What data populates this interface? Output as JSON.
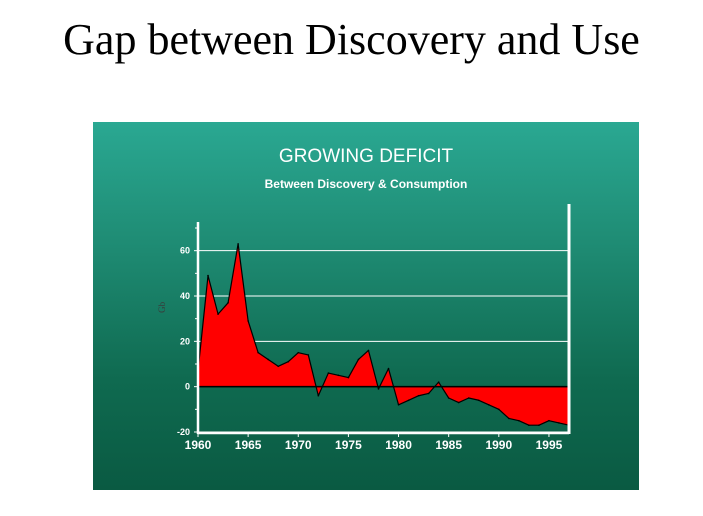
{
  "slide": {
    "title": "Gap between Discovery and Use"
  },
  "chart_data": {
    "type": "area",
    "title": "GROWING DEFICIT",
    "subtitle": "Between Discovery & Consumption",
    "xlabel": "",
    "ylabel": "Gb",
    "xlim": [
      1960,
      1997
    ],
    "ylim": [
      -20,
      70
    ],
    "yticks": [
      60,
      40,
      20,
      0,
      -20
    ],
    "xticks": [
      1960,
      1965,
      1970,
      1975,
      1980,
      1985,
      1990,
      1995
    ],
    "grid": true,
    "colors": {
      "fill": "#ff0000",
      "line": "#000000",
      "grid": "#ffffff"
    },
    "series": [
      {
        "x": [
          1960,
          1961,
          1962,
          1963,
          1964,
          1965,
          1966,
          1967,
          1968,
          1969,
          1970,
          1971,
          1972,
          1973,
          1974,
          1975,
          1976,
          1977,
          1978,
          1979,
          1980,
          1981,
          1982,
          1983,
          1984,
          1985,
          1986,
          1987,
          1988,
          1989,
          1990,
          1991,
          1992,
          1993,
          1994,
          1995,
          1996,
          1997
        ],
        "values": [
          7,
          49,
          32,
          37,
          63,
          29,
          15,
          12,
          9,
          11,
          15,
          14,
          -4,
          6,
          5,
          4,
          12,
          16,
          -1,
          8,
          -8,
          -6,
          -4,
          -3,
          2,
          -5,
          -7,
          -5,
          -6,
          -8,
          -10,
          -14,
          -15,
          -17,
          -17,
          -15,
          -16,
          -17
        ]
      }
    ]
  }
}
